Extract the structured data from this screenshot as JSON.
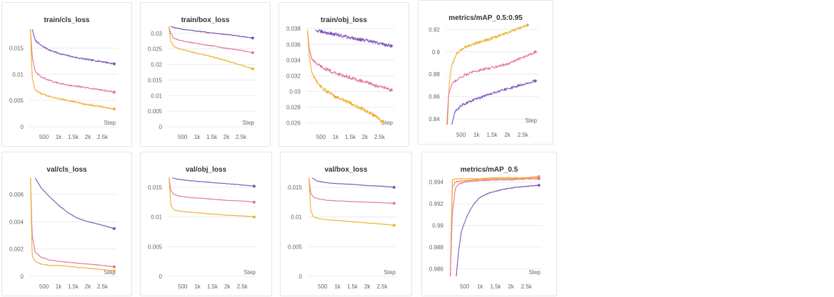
{
  "colors": {
    "purple": "#7c55b8",
    "pink": "#e2759f",
    "yellow": "#f0b02e",
    "orange": "#f08a4b",
    "grid": "#ececec",
    "axis": "#666666"
  },
  "chart_data": [
    {
      "id": "train_cls_loss",
      "type": "line",
      "title": "train/cls_loss",
      "xlabel": "Step",
      "xlim": [
        0,
        3000
      ],
      "xticks": [
        500,
        1000,
        1500,
        2000,
        2500
      ],
      "xticklabels": [
        "500",
        "1k",
        "1.5k",
        "2k",
        "2.5k"
      ],
      "ylim": [
        0,
        0.019
      ],
      "yticks": [
        0,
        0.005,
        0.01,
        0.015
      ],
      "yticklabels": [
        "0",
        "0.005",
        "0.01",
        "0.015"
      ],
      "noise": 0.00015,
      "series": [
        {
          "color": "purple",
          "x": [
            100,
            200,
            400,
            700,
            1000,
            1500,
            2000,
            2500,
            2900
          ],
          "y": [
            0.0186,
            0.0165,
            0.0155,
            0.0146,
            0.014,
            0.0133,
            0.0128,
            0.0124,
            0.012
          ]
        },
        {
          "color": "pink",
          "x": [
            40,
            100,
            200,
            400,
            700,
            1000,
            1500,
            2000,
            2500,
            2900
          ],
          "y": [
            0.0186,
            0.0135,
            0.0105,
            0.0095,
            0.0088,
            0.0083,
            0.0078,
            0.0074,
            0.007,
            0.0066
          ]
        },
        {
          "color": "yellow",
          "x": [
            40,
            100,
            200,
            400,
            700,
            1000,
            1500,
            2000,
            2500,
            2900
          ],
          "y": [
            0.0186,
            0.0095,
            0.007,
            0.0063,
            0.0058,
            0.0054,
            0.0048,
            0.0042,
            0.0038,
            0.0034
          ]
        }
      ]
    },
    {
      "id": "train_box_loss",
      "type": "line",
      "title": "train/box_loss",
      "xlabel": "Step",
      "xlim": [
        0,
        3000
      ],
      "xticks": [
        500,
        1000,
        1500,
        2000,
        2500
      ],
      "xticklabels": [
        "500",
        "1k",
        "1.5k",
        "2k",
        "2.5k"
      ],
      "ylim": [
        0,
        0.032
      ],
      "yticks": [
        0,
        0.005,
        0.01,
        0.015,
        0.02,
        0.025,
        0.03
      ],
      "yticklabels": [
        "0",
        "0.005",
        "0.01",
        "0.015",
        "0.02",
        "0.025",
        "0.03"
      ],
      "noise": 0.00015,
      "series": [
        {
          "color": "purple",
          "x": [
            100,
            300,
            600,
            1000,
            1500,
            2000,
            2500,
            2900
          ],
          "y": [
            0.0322,
            0.0316,
            0.0312,
            0.0307,
            0.0301,
            0.0296,
            0.029,
            0.0285
          ]
        },
        {
          "color": "pink",
          "x": [
            40,
            100,
            200,
            400,
            700,
            1000,
            1500,
            2000,
            2500,
            2900
          ],
          "y": [
            0.0322,
            0.03,
            0.0284,
            0.0278,
            0.0272,
            0.0267,
            0.026,
            0.0252,
            0.0245,
            0.0238
          ]
        },
        {
          "color": "yellow",
          "x": [
            40,
            100,
            200,
            400,
            700,
            1000,
            1500,
            2000,
            2500,
            2900
          ],
          "y": [
            0.0322,
            0.0275,
            0.0258,
            0.025,
            0.0243,
            0.0236,
            0.0225,
            0.0212,
            0.0198,
            0.0186
          ]
        }
      ]
    },
    {
      "id": "train_obj_loss",
      "type": "line",
      "title": "train/obj_loss",
      "xlabel": "Step",
      "xlim": [
        0,
        3000
      ],
      "xticks": [
        500,
        1000,
        1500,
        2000,
        2500
      ],
      "xticklabels": [
        "500",
        "1k",
        "1.5k",
        "2k",
        "2.5k"
      ],
      "ylim": [
        0.0255,
        0.0382
      ],
      "yticks": [
        0.026,
        0.028,
        0.03,
        0.032,
        0.034,
        0.036,
        0.038
      ],
      "yticklabels": [
        "0.026",
        "0.028",
        "0.03",
        "0.032",
        "0.034",
        "0.036",
        "0.038"
      ],
      "noise": 0.00022,
      "series": [
        {
          "color": "purple",
          "x": [
            300,
            500,
            800,
            1200,
            1600,
            2000,
            2400,
            2900
          ],
          "y": [
            0.0378,
            0.0376,
            0.0374,
            0.0371,
            0.0368,
            0.0365,
            0.0362,
            0.0358
          ]
        },
        {
          "color": "pink",
          "x": [
            40,
            100,
            200,
            400,
            700,
            1000,
            1500,
            2000,
            2500,
            2900
          ],
          "y": [
            0.0378,
            0.0355,
            0.034,
            0.0334,
            0.0328,
            0.0323,
            0.0318,
            0.0312,
            0.0306,
            0.0302
          ]
        },
        {
          "color": "yellow",
          "x": [
            40,
            100,
            200,
            400,
            700,
            1000,
            1500,
            2000,
            2300,
            2600
          ],
          "y": [
            0.0378,
            0.0345,
            0.0322,
            0.031,
            0.03,
            0.0293,
            0.0285,
            0.0276,
            0.027,
            0.0262
          ]
        }
      ]
    },
    {
      "id": "metrics_mAP_0_5_0_95",
      "type": "line",
      "title": "metrics/mAP_0.5:0.95",
      "xlabel": "Step",
      "xlim": [
        0,
        3000
      ],
      "xticks": [
        500,
        1000,
        1500,
        2000,
        2500
      ],
      "xticklabels": [
        "500",
        "1k",
        "1.5k",
        "2k",
        "2.5k"
      ],
      "ylim": [
        0.835,
        0.924
      ],
      "yticks": [
        0.84,
        0.86,
        0.88,
        0.9,
        0.92
      ],
      "yticklabels": [
        "0.84",
        "0.86",
        "0.88",
        "0.9",
        "0.92"
      ],
      "noise": 0.0012,
      "series": [
        {
          "color": "yellow",
          "x": [
            60,
            120,
            200,
            350,
            600,
            1000,
            1500,
            2000,
            2400,
            2650
          ],
          "y": [
            0.835,
            0.872,
            0.888,
            0.898,
            0.904,
            0.908,
            0.912,
            0.917,
            0.921,
            0.924
          ]
        },
        {
          "color": "pink",
          "x": [
            40,
            100,
            200,
            350,
            600,
            1000,
            1500,
            2000,
            2500,
            2900
          ],
          "y": [
            0.835,
            0.862,
            0.871,
            0.875,
            0.879,
            0.883,
            0.886,
            0.889,
            0.895,
            0.9
          ]
        },
        {
          "color": "purple",
          "x": [
            200,
            300,
            500,
            800,
            1200,
            1600,
            2000,
            2500,
            2900
          ],
          "y": [
            0.835,
            0.846,
            0.852,
            0.856,
            0.86,
            0.864,
            0.867,
            0.871,
            0.874
          ]
        }
      ]
    },
    {
      "id": "val_cls_loss",
      "type": "line",
      "title": "val/cls_loss",
      "xlabel": "Step",
      "xlim": [
        0,
        3000
      ],
      "xticks": [
        500,
        1000,
        1500,
        2000,
        2500
      ],
      "xticklabels": [
        "500",
        "1k",
        "1.5k",
        "2k",
        "2.5k"
      ],
      "ylim": [
        0,
        0.0073
      ],
      "yticks": [
        0,
        0.002,
        0.004,
        0.006
      ],
      "yticklabels": [
        "0",
        "0.002",
        "0.004",
        "0.006"
      ],
      "noise": 2e-05,
      "series": [
        {
          "color": "purple",
          "x": [
            200,
            400,
            700,
            1000,
            1300,
            1600,
            2000,
            2400,
            2900
          ],
          "y": [
            0.0072,
            0.0065,
            0.0058,
            0.0052,
            0.0047,
            0.0043,
            0.004,
            0.0038,
            0.0035
          ]
        },
        {
          "color": "pink",
          "x": [
            40,
            100,
            200,
            400,
            700,
            1000,
            1500,
            2000,
            2500,
            2900
          ],
          "y": [
            0.0072,
            0.003,
            0.0018,
            0.0014,
            0.0012,
            0.0011,
            0.001,
            0.0009,
            0.0008,
            0.0007
          ]
        },
        {
          "color": "yellow",
          "x": [
            40,
            100,
            200,
            400,
            700,
            1000,
            1500,
            2000,
            2500,
            2900
          ],
          "y": [
            0.0072,
            0.0015,
            0.0011,
            0.0009,
            0.0008,
            0.0008,
            0.0007,
            0.0006,
            0.0005,
            0.0004
          ]
        }
      ]
    },
    {
      "id": "val_obj_loss",
      "type": "line",
      "title": "val/obj_loss",
      "xlabel": "Step",
      "xlim": [
        0,
        3000
      ],
      "xticks": [
        500,
        1000,
        1500,
        2000,
        2500
      ],
      "xticklabels": [
        "500",
        "1k",
        "1.5k",
        "2k",
        "2.5k"
      ],
      "ylim": [
        0,
        0.0168
      ],
      "yticks": [
        0,
        0.005,
        0.01,
        0.015
      ],
      "yticklabels": [
        "0",
        "0.005",
        "0.01",
        "0.015"
      ],
      "noise": 4e-05,
      "series": [
        {
          "color": "purple",
          "x": [
            150,
            300,
            600,
            1000,
            1500,
            2000,
            2500,
            2900
          ],
          "y": [
            0.0166,
            0.0164,
            0.0162,
            0.016,
            0.0158,
            0.0156,
            0.0154,
            0.0152
          ]
        },
        {
          "color": "pink",
          "x": [
            40,
            100,
            200,
            400,
            700,
            1000,
            1500,
            2000,
            2500,
            2900
          ],
          "y": [
            0.0166,
            0.0145,
            0.0138,
            0.0135,
            0.0133,
            0.0132,
            0.013,
            0.0128,
            0.0127,
            0.0125
          ]
        },
        {
          "color": "yellow",
          "x": [
            40,
            100,
            200,
            400,
            700,
            1000,
            1500,
            2000,
            2500,
            2900
          ],
          "y": [
            0.0166,
            0.012,
            0.0112,
            0.011,
            0.0108,
            0.0107,
            0.0105,
            0.0103,
            0.0102,
            0.01
          ]
        }
      ]
    },
    {
      "id": "val_box_loss",
      "type": "line",
      "title": "val/box_loss",
      "xlabel": "Step",
      "xlim": [
        0,
        3000
      ],
      "xticks": [
        500,
        1000,
        1500,
        2000,
        2500
      ],
      "xticklabels": [
        "500",
        "1k",
        "1.5k",
        "2k",
        "2.5k"
      ],
      "ylim": [
        0,
        0.0168
      ],
      "yticks": [
        0,
        0.005,
        0.01,
        0.015
      ],
      "yticklabels": [
        "0",
        "0.005",
        "0.01",
        "0.015"
      ],
      "noise": 4e-05,
      "series": [
        {
          "color": "purple",
          "x": [
            150,
            300,
            600,
            1000,
            1500,
            2000,
            2500,
            2900
          ],
          "y": [
            0.0166,
            0.0161,
            0.0158,
            0.0156,
            0.0155,
            0.0153,
            0.0152,
            0.015
          ]
        },
        {
          "color": "pink",
          "x": [
            40,
            100,
            200,
            400,
            700,
            1000,
            1500,
            2000,
            2500,
            2900
          ],
          "y": [
            0.0166,
            0.014,
            0.0133,
            0.013,
            0.0128,
            0.0127,
            0.0126,
            0.0125,
            0.0124,
            0.0123
          ]
        },
        {
          "color": "yellow",
          "x": [
            40,
            100,
            200,
            400,
            700,
            1000,
            1500,
            2000,
            2500,
            2900
          ],
          "y": [
            0.0166,
            0.011,
            0.01,
            0.0097,
            0.0095,
            0.0094,
            0.0092,
            0.009,
            0.0088,
            0.0086
          ]
        }
      ]
    },
    {
      "id": "metrics_mAP_0_5",
      "type": "line",
      "title": "metrics/mAP_0.5",
      "xlabel": "Step",
      "xlim": [
        0,
        3000
      ],
      "xticks": [
        500,
        1000,
        1500,
        2000,
        2500
      ],
      "xticklabels": [
        "500",
        "1k",
        "1.5k",
        "2k",
        "2.5k"
      ],
      "ylim": [
        0.9853,
        0.9945
      ],
      "yticks": [
        0.986,
        0.988,
        0.99,
        0.992,
        0.994
      ],
      "yticklabels": [
        "0.986",
        "0.988",
        "0.99",
        "0.992",
        "0.994"
      ],
      "noise": 4e-05,
      "series": [
        {
          "color": "orange",
          "x": [
            40,
            100,
            200,
            400,
            800,
            1500,
            2000,
            2500,
            2900
          ],
          "y": [
            0.9853,
            0.9935,
            0.994,
            0.9941,
            0.9942,
            0.9943,
            0.9943,
            0.9944,
            0.9945
          ]
        },
        {
          "color": "yellow",
          "x": [
            40,
            100,
            200,
            400,
            800,
            1500,
            2000,
            2500,
            2900
          ],
          "y": [
            0.9853,
            0.9942,
            0.9943,
            0.9943,
            0.9943,
            0.9944,
            0.9944,
            0.9944,
            0.9944
          ]
        },
        {
          "color": "pink",
          "x": [
            40,
            100,
            200,
            300,
            500,
            800,
            1500,
            2000,
            2500,
            2900
          ],
          "y": [
            0.9853,
            0.991,
            0.9934,
            0.9938,
            0.994,
            0.9941,
            0.9942,
            0.9942,
            0.9943,
            0.9943
          ]
        },
        {
          "color": "purple",
          "x": [
            230,
            300,
            400,
            600,
            800,
            1000,
            1300,
            1700,
            2100,
            2500,
            2900
          ],
          "y": [
            0.9853,
            0.9875,
            0.9895,
            0.991,
            0.992,
            0.9926,
            0.993,
            0.9933,
            0.9935,
            0.9936,
            0.9937
          ]
        }
      ]
    }
  ]
}
